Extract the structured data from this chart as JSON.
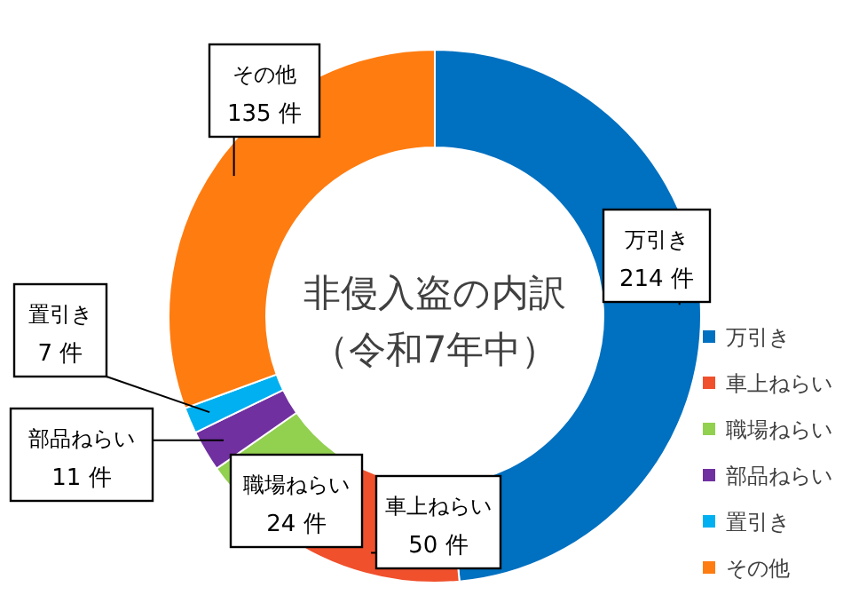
{
  "chart_data": {
    "type": "donut",
    "title": "非侵入盗の内訳",
    "subtitle": "（令和7年中）",
    "categories": [
      "万引き",
      "車上ねらい",
      "職場ねらい",
      "部品ねらい",
      "置引き",
      "その他"
    ],
    "values": [
      214,
      50,
      24,
      11,
      7,
      135
    ],
    "colors": [
      "#0070c0",
      "#f0502c",
      "#92d050",
      "#7030a0",
      "#00b0f0",
      "#ff7c10"
    ],
    "value_labels": [
      "214 件",
      "50 件",
      "24 件",
      "11 件",
      "7 件",
      "135 件"
    ],
    "legend": "right"
  }
}
